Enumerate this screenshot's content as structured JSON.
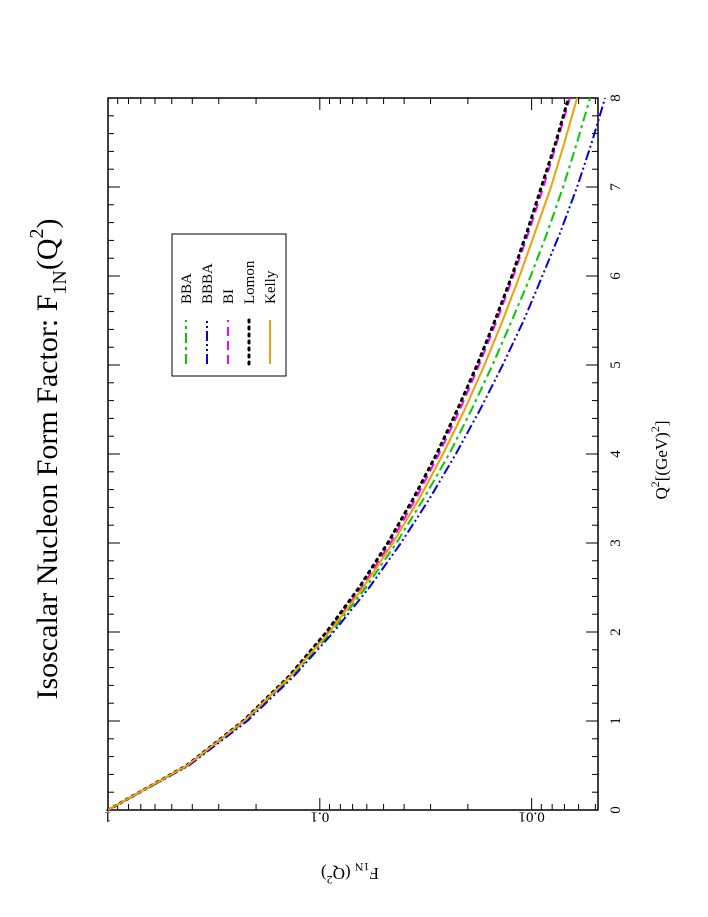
{
  "chart_data": {
    "type": "line",
    "title": "Isoscalar Nucleon Form Factor: F",
    "title_sub": "1N",
    "title_arg_open": "(Q",
    "title_arg_sup": "2",
    "title_arg_close": ")",
    "xlabel": "Q",
    "xlabel_sup": "2",
    "xlabel_rest": "[(GeV)",
    "xlabel_sup2": "2",
    "xlabel_close": "]",
    "ylabel": "F",
    "ylabel_sub": "1N",
    "ylabel_rest": " (Q",
    "ylabel_sup": "2",
    "ylabel_close": ")",
    "xlim": [
      0,
      8
    ],
    "ylim": [
      0.00486,
      1
    ],
    "yscale": "log",
    "x_ticks": [
      0,
      1,
      2,
      3,
      4,
      5,
      6,
      7,
      8
    ],
    "x_tick_labels": [
      "0",
      "1",
      "2",
      "3",
      "4",
      "5",
      "6",
      "7",
      "8"
    ],
    "y_ticks": [
      1,
      0.1,
      0.01
    ],
    "y_tick_labels": [
      "1",
      "0.1",
      "0.01"
    ],
    "legend_position": "upper-middle",
    "x": [
      0,
      0.5,
      1,
      1.5,
      2,
      2.5,
      3,
      3.5,
      4,
      4.5,
      5,
      5.5,
      6,
      6.5,
      7,
      7.5,
      8
    ],
    "series": [
      {
        "name": "BBA",
        "color": "#00cc00",
        "style": "dashdot",
        "values": [
          1.0,
          0.42,
          0.225,
          0.135,
          0.088,
          0.0606,
          0.0435,
          0.0323,
          0.0245,
          0.0192,
          0.0153,
          0.0124,
          0.0101,
          0.0084,
          0.0071,
          0.0061,
          0.0053
        ]
      },
      {
        "name": "BBBA",
        "color": "#0000ee",
        "style": "dashdotdot",
        "values": [
          1.0,
          0.415,
          0.22,
          0.133,
          0.086,
          0.0584,
          0.0414,
          0.0303,
          0.0228,
          0.0175,
          0.0137,
          0.0109,
          0.0089,
          0.0073,
          0.0061,
          0.0052,
          0.0045
        ]
      },
      {
        "name": "BI",
        "color": "#ff00ff",
        "style": "dashed",
        "values": [
          1.0,
          0.422,
          0.227,
          0.138,
          0.091,
          0.0635,
          0.0464,
          0.0352,
          0.0274,
          0.0218,
          0.0177,
          0.0146,
          0.0122,
          0.0103,
          0.0088,
          0.0076,
          0.0066
        ]
      },
      {
        "name": "Lomon",
        "color": "#000000",
        "style": "dotted",
        "values": [
          1.0,
          0.425,
          0.23,
          0.14,
          0.093,
          0.0652,
          0.0478,
          0.0362,
          0.0281,
          0.0224,
          0.0181,
          0.0149,
          0.0124,
          0.0105,
          0.009,
          0.0077,
          0.0067
        ]
      },
      {
        "name": "Kelly",
        "color": "#f0a000",
        "style": "solid",
        "values": [
          1.0,
          0.423,
          0.228,
          0.138,
          0.09,
          0.0624,
          0.0452,
          0.0339,
          0.0262,
          0.0207,
          0.0167,
          0.0137,
          0.0114,
          0.0096,
          0.0081,
          0.007,
          0.0061
        ]
      }
    ]
  }
}
